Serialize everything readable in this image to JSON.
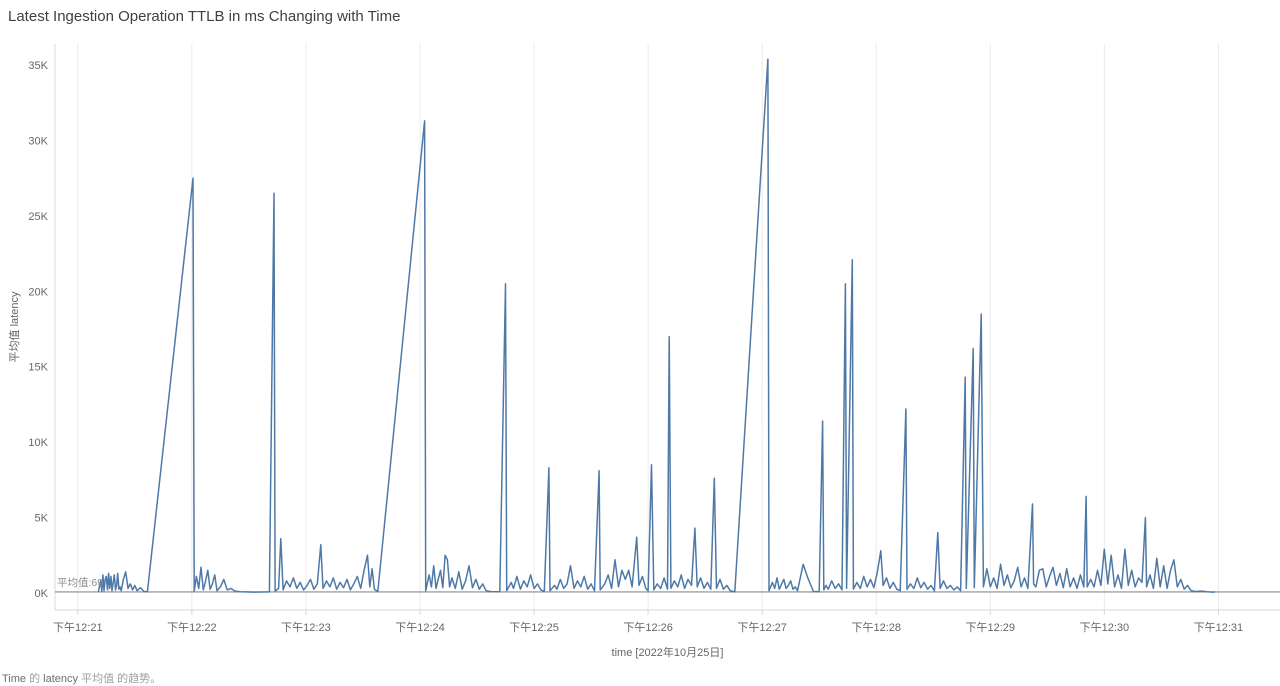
{
  "colors": {
    "line": "#4e79a7",
    "grid": "#ebebeb",
    "axis": "#d8d8d8",
    "reference": "#8a8a8a",
    "tick_text": "#666666",
    "title_text": "#3f3f3f",
    "label_text": "#8c8c8c",
    "caption_strong": "#6e6e6e",
    "caption_light": "#9e9e9e"
  },
  "caption": {
    "parts": [
      {
        "text": "Time "
      },
      {
        "text": "的 "
      },
      {
        "text": "latency "
      },
      {
        "text": "平均值 "
      },
      {
        "text": "的趋势。"
      }
    ]
  },
  "chart_data": {
    "type": "line",
    "title": "Latest Ingestion Operation TTLB in ms Changing with Time",
    "xlabel": "time [2022年10月25日]",
    "ylabel": "平均值 latency",
    "series_name": "latency",
    "x_unit": "minutes after 12:00 下午",
    "xlim": [
      20.8,
      31.54
    ],
    "ylim": [
      -1130,
      36400
    ],
    "grid": "vertical-only",
    "x_ticks": [
      {
        "value": 21,
        "label": "下午12:21"
      },
      {
        "value": 22,
        "label": "下午12:22"
      },
      {
        "value": 23,
        "label": "下午12:23"
      },
      {
        "value": 24,
        "label": "下午12:24"
      },
      {
        "value": 25,
        "label": "下午12:25"
      },
      {
        "value": 26,
        "label": "下午12:26"
      },
      {
        "value": 27,
        "label": "下午12:27"
      },
      {
        "value": 28,
        "label": "下午12:28"
      },
      {
        "value": 29,
        "label": "下午12:29"
      },
      {
        "value": 30,
        "label": "下午12:30"
      },
      {
        "value": 31,
        "label": "下午12:31"
      }
    ],
    "y_ticks": [
      {
        "value": 0,
        "label": "0K"
      },
      {
        "value": 5000,
        "label": "5K"
      },
      {
        "value": 10000,
        "label": "10K"
      },
      {
        "value": 15000,
        "label": "15K"
      },
      {
        "value": 20000,
        "label": "20K"
      },
      {
        "value": 25000,
        "label": "25K"
      },
      {
        "value": 30000,
        "label": "30K"
      },
      {
        "value": 35000,
        "label": "35K"
      }
    ],
    "reference_line": {
      "value": 69,
      "label": "平均值:69"
    },
    "points": [
      [
        21.18,
        60
      ],
      [
        21.2,
        800
      ],
      [
        21.21,
        120
      ],
      [
        21.22,
        1200
      ],
      [
        21.23,
        150
      ],
      [
        21.24,
        900
      ],
      [
        21.25,
        1100
      ],
      [
        21.26,
        200
      ],
      [
        21.27,
        1300
      ],
      [
        21.28,
        300
      ],
      [
        21.29,
        1100
      ],
      [
        21.3,
        150
      ],
      [
        21.31,
        700
      ],
      [
        21.32,
        1200
      ],
      [
        21.33,
        200
      ],
      [
        21.34,
        500
      ],
      [
        21.35,
        1300
      ],
      [
        21.36,
        250
      ],
      [
        21.37,
        400
      ],
      [
        21.38,
        150
      ],
      [
        21.4,
        900
      ],
      [
        21.42,
        1400
      ],
      [
        21.44,
        300
      ],
      [
        21.46,
        600
      ],
      [
        21.48,
        200
      ],
      [
        21.5,
        500
      ],
      [
        21.52,
        150
      ],
      [
        21.55,
        350
      ],
      [
        21.58,
        100
      ],
      [
        21.61,
        80
      ],
      [
        22.01,
        27500
      ],
      [
        22.02,
        120
      ],
      [
        22.04,
        1100
      ],
      [
        22.06,
        300
      ],
      [
        22.08,
        1700
      ],
      [
        22.1,
        200
      ],
      [
        22.12,
        800
      ],
      [
        22.14,
        1500
      ],
      [
        22.16,
        250
      ],
      [
        22.18,
        600
      ],
      [
        22.2,
        1200
      ],
      [
        22.22,
        150
      ],
      [
        22.25,
        400
      ],
      [
        22.28,
        900
      ],
      [
        22.31,
        200
      ],
      [
        22.34,
        300
      ],
      [
        22.38,
        120
      ],
      [
        22.42,
        80
      ],
      [
        22.55,
        60
      ],
      [
        22.68,
        70
      ],
      [
        22.72,
        26500
      ],
      [
        22.73,
        120
      ],
      [
        22.76,
        300
      ],
      [
        22.78,
        3600
      ],
      [
        22.8,
        200
      ],
      [
        22.83,
        800
      ],
      [
        22.86,
        400
      ],
      [
        22.89,
        1000
      ],
      [
        22.92,
        300
      ],
      [
        22.95,
        700
      ],
      [
        22.98,
        200
      ],
      [
        23.01,
        500
      ],
      [
        23.04,
        900
      ],
      [
        23.07,
        250
      ],
      [
        23.1,
        600
      ],
      [
        23.13,
        3200
      ],
      [
        23.15,
        300
      ],
      [
        23.18,
        800
      ],
      [
        23.21,
        400
      ],
      [
        23.24,
        1000
      ],
      [
        23.27,
        250
      ],
      [
        23.3,
        700
      ],
      [
        23.33,
        350
      ],
      [
        23.36,
        900
      ],
      [
        23.39,
        200
      ],
      [
        23.42,
        600
      ],
      [
        23.45,
        1100
      ],
      [
        23.48,
        300
      ],
      [
        23.51,
        1500
      ],
      [
        23.54,
        2500
      ],
      [
        23.56,
        400
      ],
      [
        23.58,
        1600
      ],
      [
        23.6,
        250
      ],
      [
        23.63,
        90
      ],
      [
        24.04,
        31300
      ],
      [
        24.05,
        150
      ],
      [
        24.08,
        1200
      ],
      [
        24.1,
        400
      ],
      [
        24.12,
        1800
      ],
      [
        24.14,
        300
      ],
      [
        24.16,
        900
      ],
      [
        24.18,
        1500
      ],
      [
        24.2,
        350
      ],
      [
        24.22,
        2500
      ],
      [
        24.24,
        2200
      ],
      [
        24.26,
        400
      ],
      [
        24.28,
        1000
      ],
      [
        24.31,
        300
      ],
      [
        24.34,
        1400
      ],
      [
        24.37,
        250
      ],
      [
        24.4,
        800
      ],
      [
        24.43,
        1800
      ],
      [
        24.46,
        350
      ],
      [
        24.49,
        900
      ],
      [
        24.52,
        250
      ],
      [
        24.55,
        600
      ],
      [
        24.58,
        150
      ],
      [
        24.62,
        90
      ],
      [
        24.7,
        80
      ],
      [
        24.75,
        20500
      ],
      [
        24.76,
        150
      ],
      [
        24.8,
        700
      ],
      [
        24.82,
        300
      ],
      [
        24.85,
        1100
      ],
      [
        24.88,
        250
      ],
      [
        24.91,
        800
      ],
      [
        24.94,
        400
      ],
      [
        24.97,
        1200
      ],
      [
        25.0,
        300
      ],
      [
        25.03,
        600
      ],
      [
        25.06,
        200
      ],
      [
        25.09,
        100
      ],
      [
        25.13,
        8300
      ],
      [
        25.14,
        150
      ],
      [
        25.18,
        500
      ],
      [
        25.2,
        250
      ],
      [
        25.23,
        900
      ],
      [
        25.26,
        300
      ],
      [
        25.29,
        600
      ],
      [
        25.32,
        1800
      ],
      [
        25.35,
        300
      ],
      [
        25.38,
        800
      ],
      [
        25.41,
        400
      ],
      [
        25.44,
        1100
      ],
      [
        25.47,
        250
      ],
      [
        25.5,
        600
      ],
      [
        25.53,
        150
      ],
      [
        25.57,
        8100
      ],
      [
        25.58,
        200
      ],
      [
        25.62,
        600
      ],
      [
        25.65,
        1200
      ],
      [
        25.68,
        300
      ],
      [
        25.71,
        2200
      ],
      [
        25.74,
        400
      ],
      [
        25.77,
        1500
      ],
      [
        25.8,
        900
      ],
      [
        25.83,
        1500
      ],
      [
        25.86,
        400
      ],
      [
        25.9,
        3700
      ],
      [
        25.92,
        500
      ],
      [
        25.95,
        1100
      ],
      [
        25.98,
        300
      ],
      [
        26.0,
        150
      ],
      [
        26.03,
        8500
      ],
      [
        26.05,
        200
      ],
      [
        26.08,
        600
      ],
      [
        26.11,
        300
      ],
      [
        26.14,
        1000
      ],
      [
        26.17,
        250
      ],
      [
        26.185,
        17000
      ],
      [
        26.2,
        300
      ],
      [
        26.23,
        800
      ],
      [
        26.26,
        400
      ],
      [
        26.29,
        1200
      ],
      [
        26.32,
        300
      ],
      [
        26.35,
        900
      ],
      [
        26.38,
        500
      ],
      [
        26.41,
        4300
      ],
      [
        26.43,
        400
      ],
      [
        26.46,
        1000
      ],
      [
        26.49,
        300
      ],
      [
        26.52,
        700
      ],
      [
        26.55,
        250
      ],
      [
        26.58,
        7600
      ],
      [
        26.6,
        300
      ],
      [
        26.63,
        900
      ],
      [
        26.66,
        250
      ],
      [
        26.69,
        500
      ],
      [
        26.72,
        150
      ],
      [
        26.76,
        70
      ],
      [
        27.05,
        35400
      ],
      [
        27.06,
        150
      ],
      [
        27.09,
        700
      ],
      [
        27.11,
        300
      ],
      [
        27.13,
        1000
      ],
      [
        27.15,
        250
      ],
      [
        27.17,
        600
      ],
      [
        27.19,
        900
      ],
      [
        27.21,
        300
      ],
      [
        27.23,
        500
      ],
      [
        27.25,
        800
      ],
      [
        27.27,
        250
      ],
      [
        27.29,
        400
      ],
      [
        27.31,
        150
      ],
      [
        27.36,
        1900
      ],
      [
        27.4,
        1000
      ],
      [
        27.45,
        100
      ],
      [
        27.5,
        80
      ],
      [
        27.53,
        11400
      ],
      [
        27.54,
        200
      ],
      [
        27.56,
        500
      ],
      [
        27.58,
        250
      ],
      [
        27.61,
        800
      ],
      [
        27.64,
        300
      ],
      [
        27.67,
        600
      ],
      [
        27.7,
        200
      ],
      [
        27.73,
        20500
      ],
      [
        27.74,
        300
      ],
      [
        27.79,
        22100
      ],
      [
        27.8,
        250
      ],
      [
        27.83,
        700
      ],
      [
        27.86,
        300
      ],
      [
        27.89,
        1100
      ],
      [
        27.92,
        400
      ],
      [
        27.95,
        900
      ],
      [
        27.98,
        350
      ],
      [
        28.01,
        1400
      ],
      [
        28.04,
        2800
      ],
      [
        28.06,
        500
      ],
      [
        28.09,
        1000
      ],
      [
        28.12,
        300
      ],
      [
        28.15,
        700
      ],
      [
        28.18,
        250
      ],
      [
        28.21,
        150
      ],
      [
        28.26,
        12200
      ],
      [
        28.27,
        250
      ],
      [
        28.3,
        600
      ],
      [
        28.33,
        300
      ],
      [
        28.36,
        1000
      ],
      [
        28.39,
        350
      ],
      [
        28.42,
        700
      ],
      [
        28.45,
        250
      ],
      [
        28.48,
        500
      ],
      [
        28.51,
        150
      ],
      [
        28.54,
        4000
      ],
      [
        28.56,
        300
      ],
      [
        28.59,
        800
      ],
      [
        28.62,
        300
      ],
      [
        28.65,
        500
      ],
      [
        28.68,
        200
      ],
      [
        28.71,
        400
      ],
      [
        28.74,
        150
      ],
      [
        28.78,
        14300
      ],
      [
        28.79,
        300
      ],
      [
        28.85,
        16200
      ],
      [
        28.86,
        350
      ],
      [
        28.92,
        18500
      ],
      [
        28.94,
        400
      ],
      [
        28.97,
        1600
      ],
      [
        29.0,
        400
      ],
      [
        29.03,
        1000
      ],
      [
        29.06,
        300
      ],
      [
        29.09,
        1900
      ],
      [
        29.12,
        500
      ],
      [
        29.15,
        1200
      ],
      [
        29.18,
        350
      ],
      [
        29.21,
        800
      ],
      [
        29.24,
        1700
      ],
      [
        29.27,
        400
      ],
      [
        29.3,
        1000
      ],
      [
        29.33,
        300
      ],
      [
        29.37,
        5900
      ],
      [
        29.38,
        600
      ],
      [
        29.4,
        400
      ],
      [
        29.43,
        1500
      ],
      [
        29.46,
        1600
      ],
      [
        29.49,
        400
      ],
      [
        29.52,
        1100
      ],
      [
        29.55,
        1700
      ],
      [
        29.58,
        500
      ],
      [
        29.61,
        1300
      ],
      [
        29.64,
        350
      ],
      [
        29.67,
        1600
      ],
      [
        29.7,
        400
      ],
      [
        29.73,
        1000
      ],
      [
        29.76,
        300
      ],
      [
        29.79,
        1200
      ],
      [
        29.82,
        400
      ],
      [
        29.84,
        6400
      ],
      [
        29.85,
        400
      ],
      [
        29.88,
        900
      ],
      [
        29.91,
        400
      ],
      [
        29.94,
        1500
      ],
      [
        29.97,
        500
      ],
      [
        30.0,
        2900
      ],
      [
        30.03,
        600
      ],
      [
        30.06,
        2500
      ],
      [
        30.09,
        400
      ],
      [
        30.12,
        1200
      ],
      [
        30.15,
        300
      ],
      [
        30.18,
        2900
      ],
      [
        30.21,
        500
      ],
      [
        30.24,
        1500
      ],
      [
        30.27,
        400
      ],
      [
        30.3,
        1000
      ],
      [
        30.33,
        700
      ],
      [
        30.36,
        5000
      ],
      [
        30.37,
        400
      ],
      [
        30.4,
        1200
      ],
      [
        30.43,
        300
      ],
      [
        30.46,
        2300
      ],
      [
        30.49,
        400
      ],
      [
        30.52,
        1800
      ],
      [
        30.55,
        300
      ],
      [
        30.58,
        1500
      ],
      [
        30.61,
        2200
      ],
      [
        30.64,
        400
      ],
      [
        30.67,
        900
      ],
      [
        30.7,
        250
      ],
      [
        30.73,
        500
      ],
      [
        30.76,
        150
      ],
      [
        30.8,
        100
      ],
      [
        30.85,
        120
      ],
      [
        30.9,
        80
      ],
      [
        30.95,
        60
      ],
      [
        30.97,
        69
      ]
    ]
  }
}
